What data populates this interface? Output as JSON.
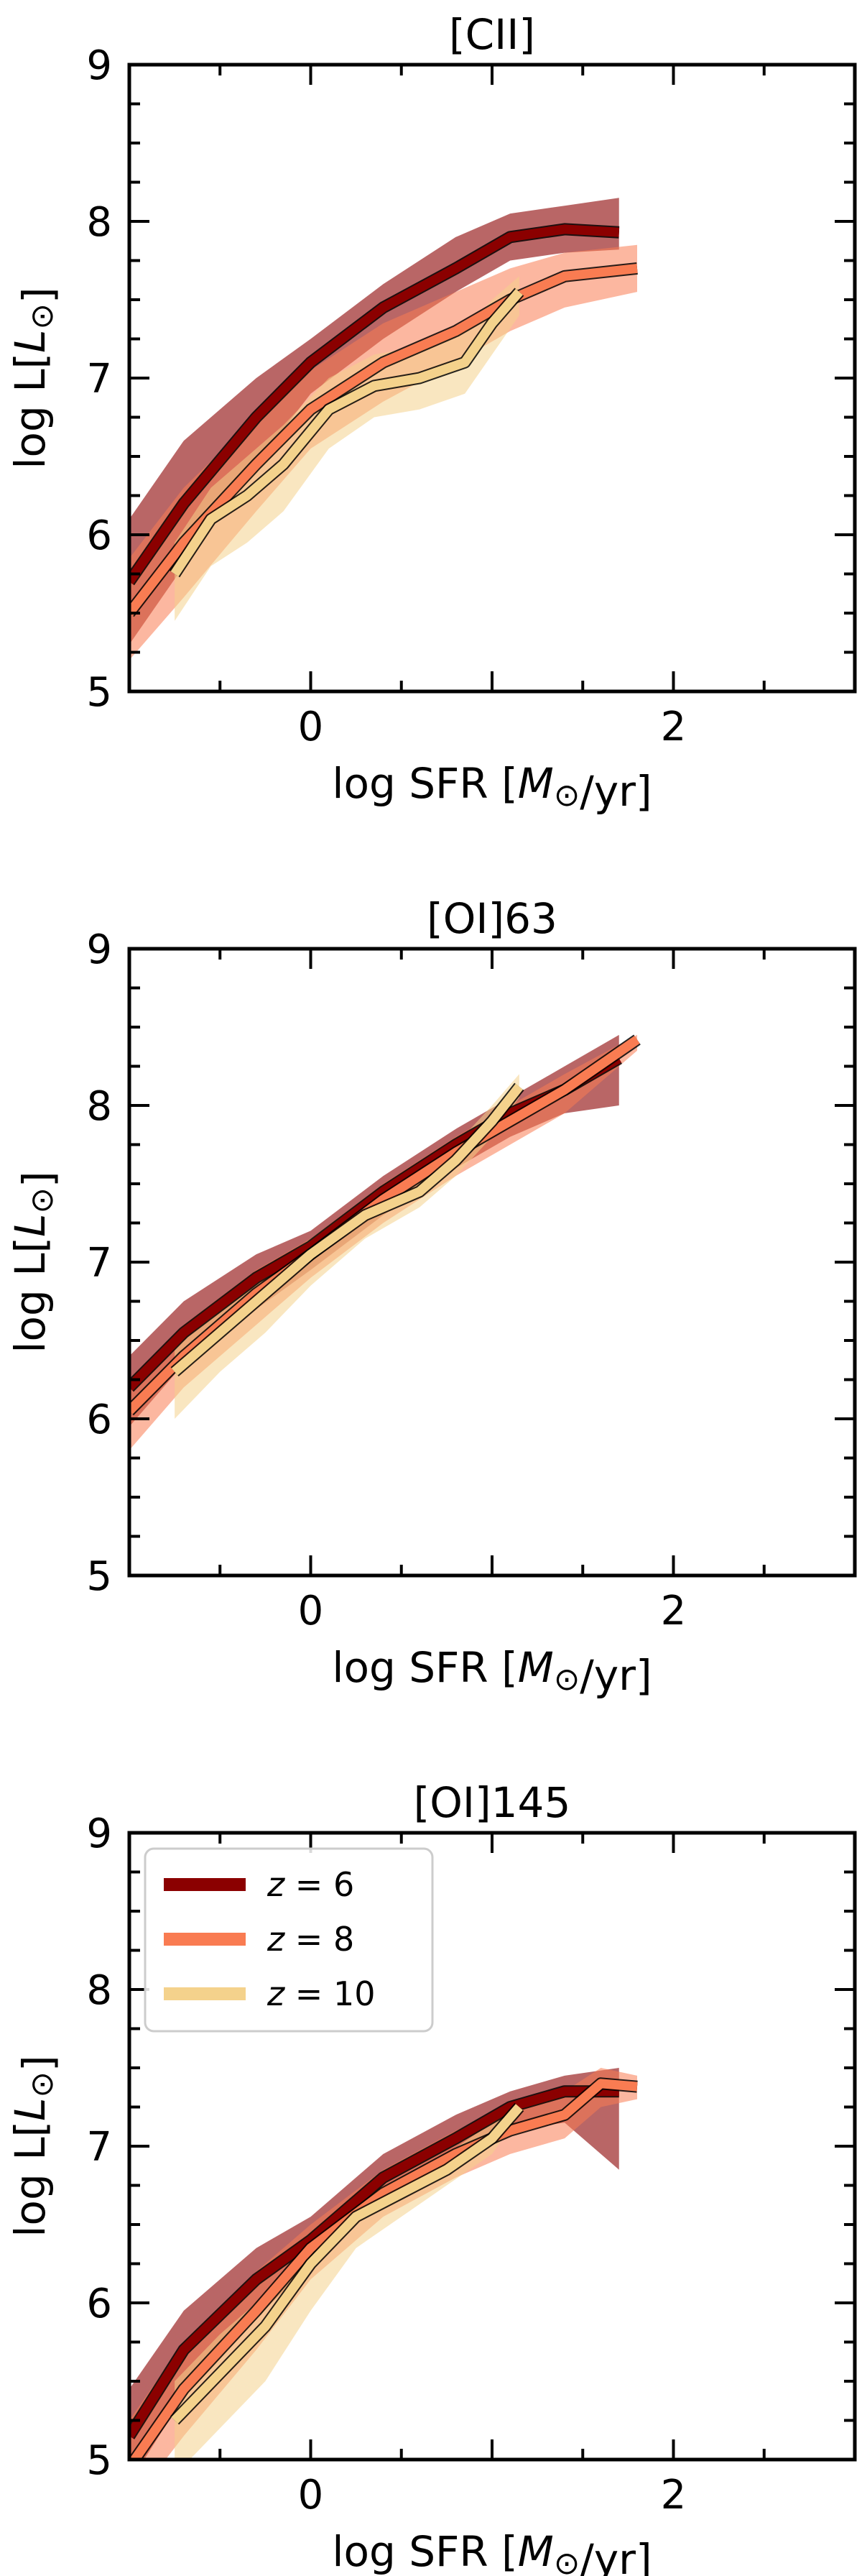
{
  "chart_data": [
    {
      "type": "line",
      "title": "[CII]",
      "xlabel": "log SFR [M⊙/yr]",
      "ylabel": "log L[L⊙]",
      "xlim": [
        -1,
        3
      ],
      "ylim": [
        5,
        9
      ],
      "x_ticks": [
        0,
        2
      ],
      "y_ticks": [
        5,
        6,
        7,
        8,
        9
      ],
      "legend": null,
      "series": [
        {
          "name": "z = 6",
          "color": "#8b0000",
          "x": [
            -1.0,
            -0.7,
            -0.3,
            0.0,
            0.4,
            0.8,
            1.1,
            1.4,
            1.7
          ],
          "y": [
            5.7,
            6.2,
            6.75,
            7.1,
            7.45,
            7.7,
            7.9,
            7.95,
            7.93
          ],
          "band_upper": [
            6.1,
            6.6,
            7.0,
            7.25,
            7.6,
            7.9,
            8.05,
            8.1,
            8.15
          ],
          "band_lower": [
            5.3,
            5.8,
            6.45,
            6.9,
            7.25,
            7.55,
            7.75,
            7.8,
            7.82
          ]
        },
        {
          "name": "z = 8",
          "color": "#f97c52",
          "x": [
            -1.0,
            -0.7,
            -0.3,
            0.0,
            0.4,
            0.8,
            1.1,
            1.4,
            1.8
          ],
          "y": [
            5.5,
            5.95,
            6.45,
            6.8,
            7.1,
            7.3,
            7.5,
            7.65,
            7.7
          ],
          "band_upper": [
            5.85,
            6.3,
            6.75,
            7.05,
            7.35,
            7.55,
            7.7,
            7.8,
            7.85
          ],
          "band_lower": [
            5.2,
            5.6,
            6.15,
            6.55,
            6.85,
            7.1,
            7.3,
            7.45,
            7.55
          ]
        },
        {
          "name": "z = 10",
          "color": "#f4d28c",
          "x": [
            -0.75,
            -0.55,
            -0.35,
            -0.15,
            0.1,
            0.35,
            0.6,
            0.85,
            1.0,
            1.15
          ],
          "y": [
            5.75,
            6.1,
            6.25,
            6.45,
            6.8,
            6.95,
            7.0,
            7.1,
            7.35,
            7.55
          ],
          "band_upper": [
            5.95,
            6.3,
            6.5,
            6.7,
            7.0,
            7.15,
            7.2,
            7.3,
            7.5,
            7.65
          ],
          "band_lower": [
            5.45,
            5.8,
            5.95,
            6.15,
            6.55,
            6.75,
            6.8,
            6.9,
            7.15,
            7.4
          ]
        }
      ]
    },
    {
      "type": "line",
      "title": "[OI]63",
      "xlabel": "log SFR [M⊙/yr]",
      "ylabel": "log L[L⊙]",
      "xlim": [
        -1,
        3
      ],
      "ylim": [
        5,
        9
      ],
      "x_ticks": [
        0,
        2
      ],
      "y_ticks": [
        5,
        6,
        7,
        8,
        9
      ],
      "legend": null,
      "series": [
        {
          "name": "z = 6",
          "color": "#8b0000",
          "x": [
            -1.0,
            -0.7,
            -0.3,
            0.0,
            0.4,
            0.8,
            1.1,
            1.4,
            1.7
          ],
          "y": [
            6.2,
            6.55,
            6.9,
            7.1,
            7.45,
            7.75,
            7.95,
            8.1,
            8.3
          ],
          "band_upper": [
            6.4,
            6.75,
            7.05,
            7.2,
            7.55,
            7.85,
            8.05,
            8.25,
            8.45
          ],
          "band_lower": [
            5.95,
            6.35,
            6.7,
            6.95,
            7.3,
            7.6,
            7.8,
            7.95,
            8.0
          ]
        },
        {
          "name": "z = 8",
          "color": "#f97c52",
          "x": [
            -1.0,
            -0.7,
            -0.3,
            0.0,
            0.4,
            0.8,
            1.1,
            1.4,
            1.8
          ],
          "y": [
            6.05,
            6.4,
            6.8,
            7.05,
            7.4,
            7.7,
            7.9,
            8.1,
            8.42
          ],
          "band_upper": [
            6.25,
            6.6,
            6.95,
            7.15,
            7.5,
            7.8,
            8.0,
            8.2,
            8.45
          ],
          "band_lower": [
            5.8,
            6.2,
            6.6,
            6.9,
            7.25,
            7.55,
            7.75,
            7.95,
            8.35
          ]
        },
        {
          "name": "z = 10",
          "color": "#f4d28c",
          "x": [
            -0.75,
            -0.5,
            -0.25,
            0.0,
            0.3,
            0.6,
            0.8,
            1.0,
            1.15
          ],
          "y": [
            6.3,
            6.55,
            6.8,
            7.05,
            7.3,
            7.45,
            7.65,
            7.9,
            8.12
          ],
          "band_upper": [
            6.45,
            6.7,
            6.95,
            7.15,
            7.4,
            7.55,
            7.75,
            8.0,
            8.2
          ],
          "band_lower": [
            6.0,
            6.3,
            6.55,
            6.85,
            7.15,
            7.35,
            7.55,
            7.8,
            8.05
          ]
        }
      ]
    },
    {
      "type": "line",
      "title": "[OI]145",
      "xlabel": "log SFR [M⊙/yr]",
      "ylabel": "log L[L⊙]",
      "xlim": [
        -1,
        3
      ],
      "ylim": [
        5,
        9
      ],
      "x_ticks": [
        0,
        2
      ],
      "y_ticks": [
        5,
        6,
        7,
        8,
        9
      ],
      "legend": "top-left",
      "series": [
        {
          "name": "z = 6",
          "color": "#8b0000",
          "x": [
            -1.0,
            -0.7,
            -0.3,
            0.0,
            0.4,
            0.8,
            1.1,
            1.4,
            1.7
          ],
          "y": [
            5.15,
            5.7,
            6.15,
            6.4,
            6.8,
            7.05,
            7.25,
            7.35,
            7.35
          ],
          "band_upper": [
            5.45,
            5.95,
            6.35,
            6.55,
            6.95,
            7.2,
            7.35,
            7.45,
            7.5
          ],
          "band_lower": [
            4.85,
            5.4,
            5.9,
            6.25,
            6.65,
            6.9,
            7.1,
            7.15,
            6.85
          ]
        },
        {
          "name": "z = 8",
          "color": "#f97c52",
          "x": [
            -1.0,
            -0.7,
            -0.3,
            0.0,
            0.4,
            0.8,
            1.1,
            1.4,
            1.6,
            1.8
          ],
          "y": [
            4.95,
            5.45,
            5.95,
            6.35,
            6.7,
            6.95,
            7.1,
            7.2,
            7.4,
            7.38
          ],
          "band_upper": [
            5.25,
            5.75,
            6.2,
            6.5,
            6.85,
            7.1,
            7.25,
            7.35,
            7.5,
            7.45
          ],
          "band_lower": [
            4.7,
            5.15,
            5.7,
            6.15,
            6.55,
            6.8,
            6.95,
            7.05,
            7.25,
            7.3
          ]
        },
        {
          "name": "z = 10",
          "color": "#f4d28c",
          "x": [
            -0.75,
            -0.5,
            -0.25,
            0.0,
            0.25,
            0.5,
            0.75,
            1.0,
            1.15
          ],
          "y": [
            5.25,
            5.55,
            5.85,
            6.25,
            6.55,
            6.7,
            6.85,
            7.05,
            7.25
          ],
          "band_upper": [
            5.5,
            5.8,
            6.05,
            6.4,
            6.65,
            6.8,
            6.95,
            7.15,
            7.3
          ],
          "band_lower": [
            4.9,
            5.2,
            5.5,
            5.95,
            6.35,
            6.55,
            6.75,
            6.95,
            7.2
          ]
        }
      ]
    }
  ]
}
